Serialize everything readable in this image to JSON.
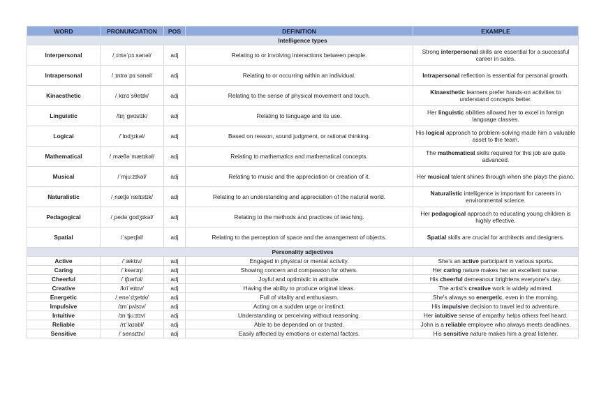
{
  "table": {
    "columns": [
      "WORD",
      "PRONUNCIATION",
      "POS",
      "DEFINITION",
      "EXAMPLE"
    ],
    "sections": [
      {
        "title": "Intelligence types",
        "rows": [
          {
            "word": "Interpersonal",
            "pronunciation": "/ˌɪntəˈpɜːsənəl/",
            "pos": "adj",
            "definition": "Relating to or involving interactions between people.",
            "example": [
              {
                "text": "Strong "
              },
              {
                "text": "interpersonal",
                "bold": true
              },
              {
                "text": " skills are essential for a successful career in sales."
              }
            ]
          },
          {
            "word": "Intrapersonal",
            "pronunciation": "/ˌɪntrəˈpɜːsənəl/",
            "pos": "adj",
            "definition": "Relating to or occurring within an individual.",
            "example": [
              {
                "text": "Intrapersonal",
                "bold": true
              },
              {
                "text": " reflection is essential for personal growth."
              }
            ]
          },
          {
            "word": "Kinaesthetic",
            "pronunciation": "/ˌkɪnɪˈsθetɪk/",
            "pos": "adj",
            "definition": "Relating to the sense of physical movement and touch.",
            "example": [
              {
                "text": "Kinaesthetic",
                "bold": true
              },
              {
                "text": " learners prefer hands-on activities to understand concepts better."
              }
            ]
          },
          {
            "word": "Linguistic",
            "pronunciation": "/lɪŋˈɡwɪstɪk/",
            "pos": "adj",
            "definition": "Relating to language and its use.",
            "example": [
              {
                "text": "Her "
              },
              {
                "text": "linguistic",
                "bold": true
              },
              {
                "text": " abilities allowed her to excel in foreign language classes."
              }
            ]
          },
          {
            "word": "Logical",
            "pronunciation": "/ˈlɒdʒɪkəl/",
            "pos": "adj",
            "definition": "Based on reason, sound judgment, or rational thinking.",
            "example": [
              {
                "text": "His "
              },
              {
                "text": "logical",
                "bold": true
              },
              {
                "text": " approach to problem-solving made him a valuable asset to the team."
              }
            ]
          },
          {
            "word": "Mathematical",
            "pronunciation": "/ˌmæθəˈmætɪkəl/",
            "pos": "adj",
            "definition": "Relating to mathematics and mathematical concepts.",
            "example": [
              {
                "text": "The "
              },
              {
                "text": "mathematical",
                "bold": true
              },
              {
                "text": " skills required for this job are quite advanced."
              }
            ]
          },
          {
            "word": "Musical",
            "pronunciation": "/ˈmjuːzɪkəl/",
            "pos": "adj",
            "definition": "Relating to music and the appreciation or creation of it.",
            "example": [
              {
                "text": "Her "
              },
              {
                "text": "musical",
                "bold": true
              },
              {
                "text": " talent shines through when she plays the piano."
              }
            ]
          },
          {
            "word": "Naturalistic",
            "pronunciation": "/ˌnætʃəˈrælɪstɪk/",
            "pos": "adj",
            "definition": "Relating to an understanding and appreciation of the natural world.",
            "example": [
              {
                "text": "Naturalistic",
                "bold": true
              },
              {
                "text": " intelligence is important for careers in environmental science."
              }
            ]
          },
          {
            "word": "Pedagogical",
            "pronunciation": "/ˌpedəˈɡɒdʒɪkəl/",
            "pos": "adj",
            "definition": "Relating to the methods and practices of teaching.",
            "example": [
              {
                "text": "Her "
              },
              {
                "text": "pedagogical",
                "bold": true
              },
              {
                "text": " approach to educating young children is highly effective."
              }
            ]
          },
          {
            "word": "Spatial",
            "pronunciation": "/ˈspeɪʃəl/",
            "pos": "adj",
            "definition": "Relating to the perception of space and the arrangement of objects.",
            "example": [
              {
                "text": "Spatial",
                "bold": true
              },
              {
                "text": " skills are crucial for architects and designers."
              }
            ]
          }
        ]
      },
      {
        "title": "Personality adjectives",
        "rows": [
          {
            "word": "Active",
            "pronunciation": "/ˈæktɪv/",
            "pos": "adj",
            "definition": "Engaged in physical or mental activity.",
            "example": [
              {
                "text": "She's an "
              },
              {
                "text": "active",
                "bold": true
              },
              {
                "text": " participant in various sports."
              }
            ]
          },
          {
            "word": "Caring",
            "pronunciation": "/ˈkeərɪŋ/",
            "pos": "adj",
            "definition": "Showing concern and compassion for others.",
            "example": [
              {
                "text": "Her "
              },
              {
                "text": "caring",
                "bold": true
              },
              {
                "text": " nature makes her an excellent nurse."
              }
            ]
          },
          {
            "word": "Cheerful",
            "pronunciation": "/ˈtʃɪərfʊl/",
            "pos": "adj",
            "definition": "Joyful and optimistic in attitude.",
            "example": [
              {
                "text": "His "
              },
              {
                "text": "cheerful",
                "bold": true
              },
              {
                "text": " demeanour brightens everyone's day."
              }
            ]
          },
          {
            "word": "Creative",
            "pronunciation": "/kriˈeɪtɪv/",
            "pos": "adj",
            "definition": "Having the ability to produce original ideas.",
            "example": [
              {
                "text": "The artist's "
              },
              {
                "text": "creative",
                "bold": true
              },
              {
                "text": " work is widely admired."
              }
            ]
          },
          {
            "word": "Energetic",
            "pronunciation": "/ˌenəˈdʒetɪk/",
            "pos": "adj",
            "definition": "Full of vitality and enthusiasm.",
            "example": [
              {
                "text": "She's always so "
              },
              {
                "text": "energetic",
                "bold": true
              },
              {
                "text": ", even in the morning."
              }
            ]
          },
          {
            "word": "Impulsive",
            "pronunciation": "/ɪmˈpʌlsɪv/",
            "pos": "adj",
            "definition": "Acting on a sudden urge or instinct.",
            "example": [
              {
                "text": "His "
              },
              {
                "text": "impulsive",
                "bold": true
              },
              {
                "text": " decision to travel led to adventure."
              }
            ]
          },
          {
            "word": "Intuitive",
            "pronunciation": "/ɪnˈtjuːɪtɪv/",
            "pos": "adj",
            "definition": "Understanding or perceiving without reasoning.",
            "example": [
              {
                "text": "Her "
              },
              {
                "text": "intuitive",
                "bold": true
              },
              {
                "text": " sense of empathy helps others feel heard."
              }
            ]
          },
          {
            "word": "Reliable",
            "pronunciation": "/rɪˈlaɪəbl/",
            "pos": "adj",
            "definition": "Able to be depended on or trusted.",
            "example": [
              {
                "text": "John is a "
              },
              {
                "text": "reliable",
                "bold": true
              },
              {
                "text": " employee who always meets deadlines."
              }
            ]
          },
          {
            "word": "Sensitive",
            "pronunciation": "/ˈsensɪtɪv/",
            "pos": "adj",
            "definition": "Easily affected by emotions or external factors.",
            "example": [
              {
                "text": "His "
              },
              {
                "text": "sensitive",
                "bold": true
              },
              {
                "text": " nature makes him a great listener."
              }
            ]
          }
        ]
      }
    ]
  }
}
